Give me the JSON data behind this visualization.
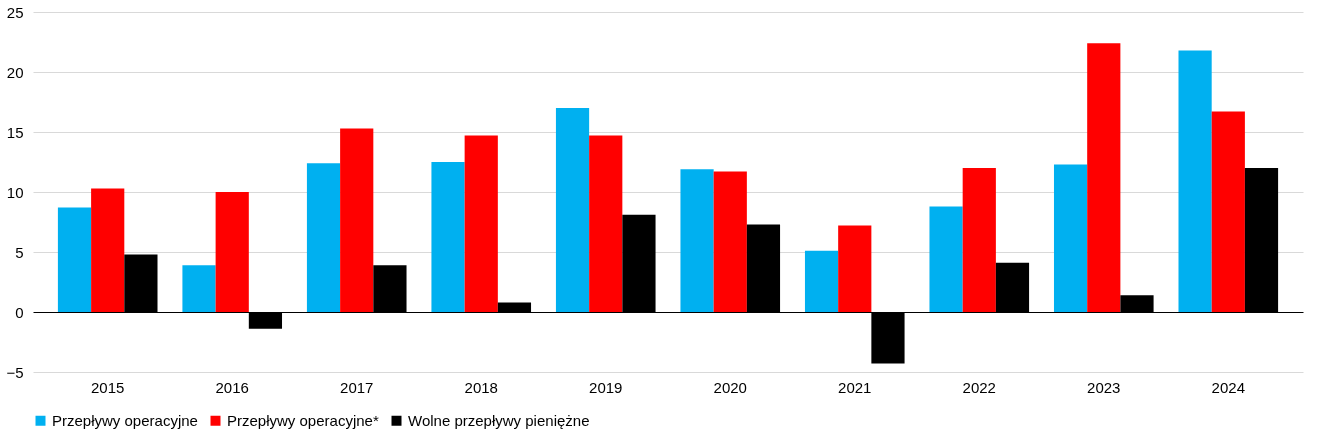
{
  "chart_data": {
    "type": "bar",
    "categories": [
      "2015",
      "2016",
      "2017",
      "2018",
      "2019",
      "2020",
      "2021",
      "2022",
      "2023",
      "2024"
    ],
    "series": [
      {
        "name": "Przepływy operacyjne",
        "color": "#00b0f0",
        "values": [
          8.7,
          3.9,
          12.4,
          12.5,
          17.0,
          11.9,
          5.1,
          8.8,
          12.3,
          21.8
        ]
      },
      {
        "name": "Przepływy operacyjne*",
        "color": "#ff0000",
        "values": [
          10.3,
          10.0,
          15.3,
          14.7,
          14.7,
          11.7,
          7.2,
          12.0,
          22.4,
          16.7
        ]
      },
      {
        "name": "Wolne przepływy pieniężne",
        "color": "#000000",
        "values": [
          4.8,
          -1.4,
          3.9,
          0.8,
          8.1,
          7.3,
          -4.3,
          4.1,
          1.4,
          12.0
        ]
      }
    ],
    "ylim": [
      -5,
      25
    ],
    "yticks": [
      -5,
      0,
      5,
      10,
      15,
      20,
      25
    ],
    "grid": "y",
    "legend": "bottom"
  }
}
